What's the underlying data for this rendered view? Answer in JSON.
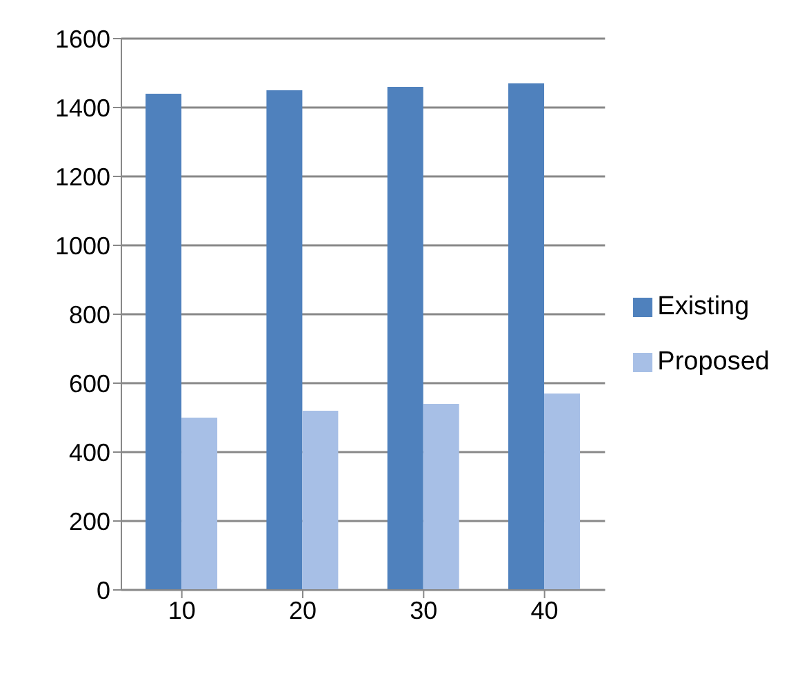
{
  "chart_data": {
    "type": "bar",
    "categories": [
      "10",
      "20",
      "30",
      "40"
    ],
    "series": [
      {
        "name": "Existing",
        "color": "#4f81bd",
        "values": [
          1440,
          1450,
          1460,
          1470
        ]
      },
      {
        "name": "Proposed",
        "color": "#a7bfe6",
        "values": [
          500,
          520,
          540,
          570
        ]
      }
    ],
    "ylim": [
      0,
      1600
    ],
    "yticks": [
      0,
      200,
      400,
      600,
      800,
      1000,
      1200,
      1400,
      1600
    ],
    "grid": "y",
    "legend": "right"
  }
}
